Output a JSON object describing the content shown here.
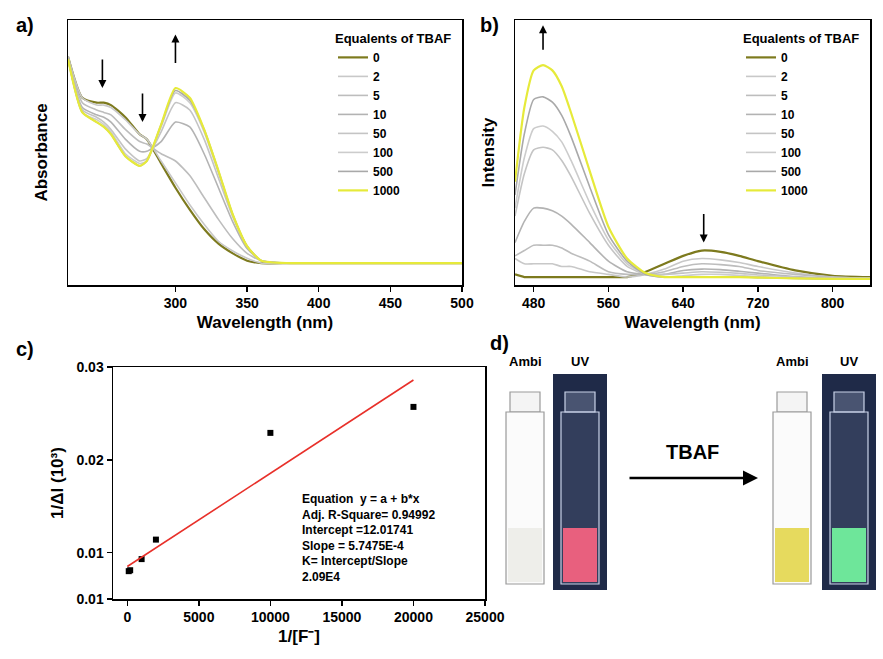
{
  "chart_data": [
    {
      "type": "line",
      "label": "a)",
      "x_label": "Wavelength (nm)",
      "y_label": "Absorbance",
      "xlim": [
        225,
        500
      ],
      "xticks": [
        300,
        350,
        400,
        450,
        500
      ],
      "ylim": [
        -0.09,
        1.0
      ],
      "tick_labels": "x",
      "grid": false,
      "legend": "upper right",
      "legend_title": "Equalents of TBAF",
      "x": [
        225,
        235,
        245,
        250,
        255,
        265,
        275,
        280,
        290,
        300,
        310,
        320,
        330,
        340,
        350,
        360,
        380,
        400,
        450,
        500
      ],
      "series": [
        {
          "name": "0",
          "color": "#7d7a1e",
          "values": [
            0.85,
            0.68,
            0.66,
            0.66,
            0.65,
            0.6,
            0.53,
            0.51,
            0.41,
            0.31,
            0.22,
            0.14,
            0.08,
            0.04,
            0.01,
            0,
            0,
            0,
            0,
            0
          ]
        },
        {
          "name": "2",
          "color": "#c8c8c8",
          "values": [
            0.85,
            0.68,
            0.65,
            0.65,
            0.64,
            0.59,
            0.53,
            0.51,
            0.42,
            0.33,
            0.24,
            0.16,
            0.09,
            0.05,
            0.02,
            0,
            0,
            0,
            0,
            0
          ]
        },
        {
          "name": "5",
          "color": "#bdbdbd",
          "values": [
            0.85,
            0.66,
            0.63,
            0.62,
            0.61,
            0.55,
            0.5,
            0.49,
            0.45,
            0.42,
            0.36,
            0.27,
            0.18,
            0.1,
            0.04,
            0.01,
            0,
            0,
            0,
            0
          ]
        },
        {
          "name": "10",
          "color": "#b3b3b3",
          "values": [
            0.84,
            0.64,
            0.61,
            0.6,
            0.58,
            0.51,
            0.46,
            0.46,
            0.5,
            0.58,
            0.56,
            0.45,
            0.31,
            0.17,
            0.06,
            0.01,
            0,
            0,
            0,
            0
          ]
        },
        {
          "name": "50",
          "color": "#c4c4c4",
          "values": [
            0.84,
            0.63,
            0.6,
            0.58,
            0.55,
            0.47,
            0.42,
            0.43,
            0.54,
            0.66,
            0.63,
            0.51,
            0.35,
            0.19,
            0.07,
            0.01,
            0,
            0,
            0,
            0
          ]
        },
        {
          "name": "100",
          "color": "#cccccc",
          "values": [
            0.84,
            0.62,
            0.59,
            0.57,
            0.54,
            0.45,
            0.41,
            0.42,
            0.56,
            0.7,
            0.66,
            0.54,
            0.37,
            0.2,
            0.07,
            0.01,
            0,
            0,
            0,
            0
          ]
        },
        {
          "name": "500",
          "color": "#a9a9a9",
          "values": [
            0.84,
            0.62,
            0.58,
            0.56,
            0.53,
            0.44,
            0.4,
            0.42,
            0.57,
            0.71,
            0.67,
            0.55,
            0.38,
            0.2,
            0.07,
            0.01,
            0,
            0,
            0,
            0
          ]
        },
        {
          "name": "1000",
          "color": "#e6ea3a",
          "values": [
            0.84,
            0.62,
            0.58,
            0.56,
            0.53,
            0.44,
            0.4,
            0.42,
            0.57,
            0.72,
            0.68,
            0.55,
            0.38,
            0.2,
            0.07,
            0.01,
            0,
            0,
            0,
            0
          ]
        }
      ]
    },
    {
      "type": "line",
      "label": "b)",
      "x_label": "Wavelength (nm)",
      "y_label": "Intensity",
      "xlim": [
        460,
        840
      ],
      "xticks": [
        480,
        560,
        640,
        720,
        800
      ],
      "ylim": [
        -0.02,
        0.98
      ],
      "tick_labels": "x",
      "grid": false,
      "legend": "upper right",
      "legend_title": "Equalents of TBAF",
      "x": [
        460,
        470,
        480,
        490,
        500,
        510,
        520,
        540,
        560,
        580,
        600,
        620,
        640,
        660,
        680,
        700,
        720,
        760,
        800,
        840
      ],
      "series": [
        {
          "name": "0",
          "color": "#7d7a1e",
          "values": [
            0.02,
            0.01,
            0.01,
            0.01,
            0.01,
            0.01,
            0.01,
            0.01,
            0.01,
            0.01,
            0.03,
            0.06,
            0.09,
            0.11,
            0.105,
            0.09,
            0.07,
            0.035,
            0.015,
            0.01
          ]
        },
        {
          "name": "2",
          "color": "#c8c8c8",
          "values": [
            0.08,
            0.06,
            0.06,
            0.06,
            0.06,
            0.05,
            0.05,
            0.03,
            0.02,
            0.01,
            0.02,
            0.04,
            0.07,
            0.08,
            0.075,
            0.065,
            0.05,
            0.025,
            0.01,
            0.005
          ]
        },
        {
          "name": "5",
          "color": "#bdbdbd",
          "values": [
            0.09,
            0.11,
            0.13,
            0.13,
            0.13,
            0.12,
            0.1,
            0.07,
            0.03,
            0.02,
            0.02,
            0.03,
            0.05,
            0.06,
            0.057,
            0.05,
            0.035,
            0.02,
            0.01,
            0.005
          ]
        },
        {
          "name": "10",
          "color": "#b3b3b3",
          "values": [
            0.14,
            0.22,
            0.27,
            0.27,
            0.26,
            0.24,
            0.21,
            0.14,
            0.07,
            0.03,
            0.02,
            0.02,
            0.035,
            0.04,
            0.038,
            0.032,
            0.025,
            0.012,
            0.005,
            0.005
          ]
        },
        {
          "name": "50",
          "color": "#c4c4c4",
          "values": [
            0.24,
            0.4,
            0.49,
            0.5,
            0.49,
            0.45,
            0.39,
            0.25,
            0.13,
            0.05,
            0.02,
            0.02,
            0.025,
            0.03,
            0.028,
            0.024,
            0.018,
            0.01,
            0.005,
            0.005
          ]
        },
        {
          "name": "100",
          "color": "#cccccc",
          "values": [
            0.27,
            0.46,
            0.57,
            0.58,
            0.56,
            0.52,
            0.45,
            0.29,
            0.15,
            0.06,
            0.02,
            0.01,
            0.015,
            0.02,
            0.02,
            0.016,
            0.012,
            0.006,
            0.004,
            0.004
          ]
        },
        {
          "name": "500",
          "color": "#a9a9a9",
          "values": [
            0.32,
            0.55,
            0.68,
            0.69,
            0.67,
            0.62,
            0.54,
            0.35,
            0.17,
            0.07,
            0.02,
            0.01,
            0.01,
            0.01,
            0.01,
            0.01,
            0.008,
            0.005,
            0.003,
            0.003
          ]
        },
        {
          "name": "1000",
          "color": "#e6ea3a",
          "values": [
            0.37,
            0.65,
            0.79,
            0.81,
            0.79,
            0.73,
            0.63,
            0.41,
            0.2,
            0.08,
            0.025,
            0.01,
            0.01,
            0.01,
            0.01,
            0.01,
            0.008,
            0.005,
            0.003,
            0.003
          ]
        }
      ]
    },
    {
      "type": "scatter",
      "label": "c)",
      "x_label": "1/[F⁻]",
      "y_label": "1/ΔI (10³)",
      "xlim": [
        -1000,
        25000
      ],
      "xticks": [
        0,
        5000,
        10000,
        15000,
        20000,
        25000
      ],
      "ylim": [
        0.005,
        0.03
      ],
      "yticks": [
        {
          "value": 0.005,
          "label": "0.01"
        },
        0.01,
        0.02,
        0.03
      ],
      "grid": false,
      "annotations": [
        "Equation  y = a + b*x",
        "Adj. R-Square= 0.94992",
        "Intercept =12.01741",
        "Slope = 5.7475E-4",
        "K= Intercept/Slope",
        "2.09E4"
      ],
      "series": [
        {
          "type": "scatter",
          "marker": "square",
          "color": "#000000",
          "x": [
            100,
            200,
            1000,
            2000,
            10000,
            20000
          ],
          "values": [
            0.008,
            0.0081,
            0.0093,
            0.0114,
            0.0229,
            0.0257
          ]
        },
        {
          "type": "line",
          "color": "#e8302a",
          "x": [
            0,
            20000
          ],
          "values": [
            0.0085,
            0.0286
          ]
        }
      ]
    }
  ],
  "photo": {
    "label": "d)",
    "arrow_label": "TBAF",
    "vials": [
      {
        "label": "Ambi",
        "color": "#eeeeea"
      },
      {
        "label": "UV",
        "color": "#e8607e"
      },
      {
        "label": "Ambi",
        "color": "#e6da5e"
      },
      {
        "label": "UV",
        "color": "#6ee69a"
      }
    ]
  }
}
